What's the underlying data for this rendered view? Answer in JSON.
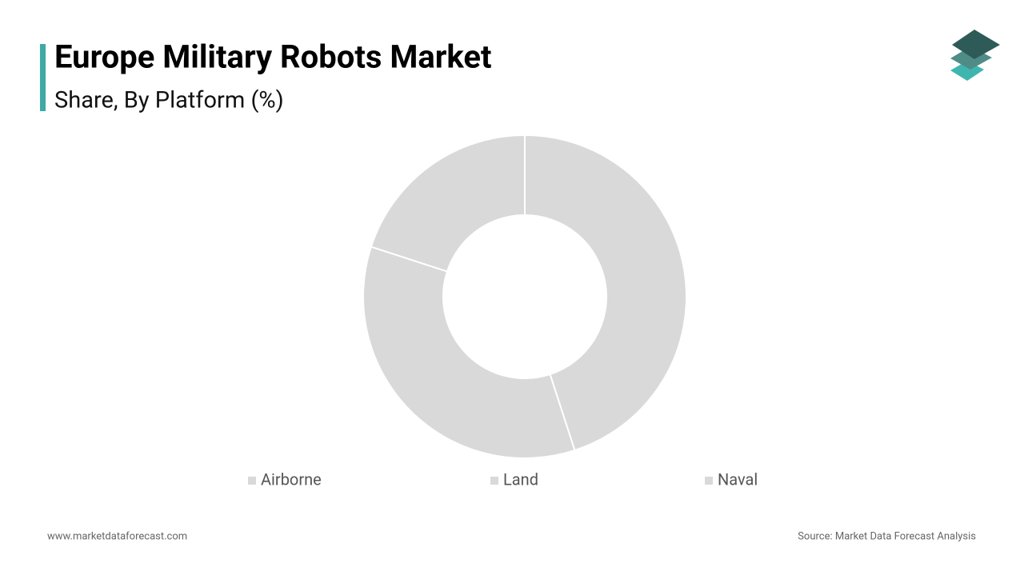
{
  "chart_data": {
    "type": "donut",
    "title": "Europe Military Robots Market",
    "subtitle": "Share, By Platform (%)",
    "categories": [
      "Airborne",
      "Land",
      "Naval"
    ],
    "values": [
      45,
      35,
      20
    ],
    "colors": [
      "#d9d9d9",
      "#d9d9d9",
      "#d9d9d9"
    ],
    "legend": "bottom"
  },
  "footer": {
    "website": "www.marketdataforecast.com",
    "source": "Source: Market Data Forecast Analysis"
  }
}
